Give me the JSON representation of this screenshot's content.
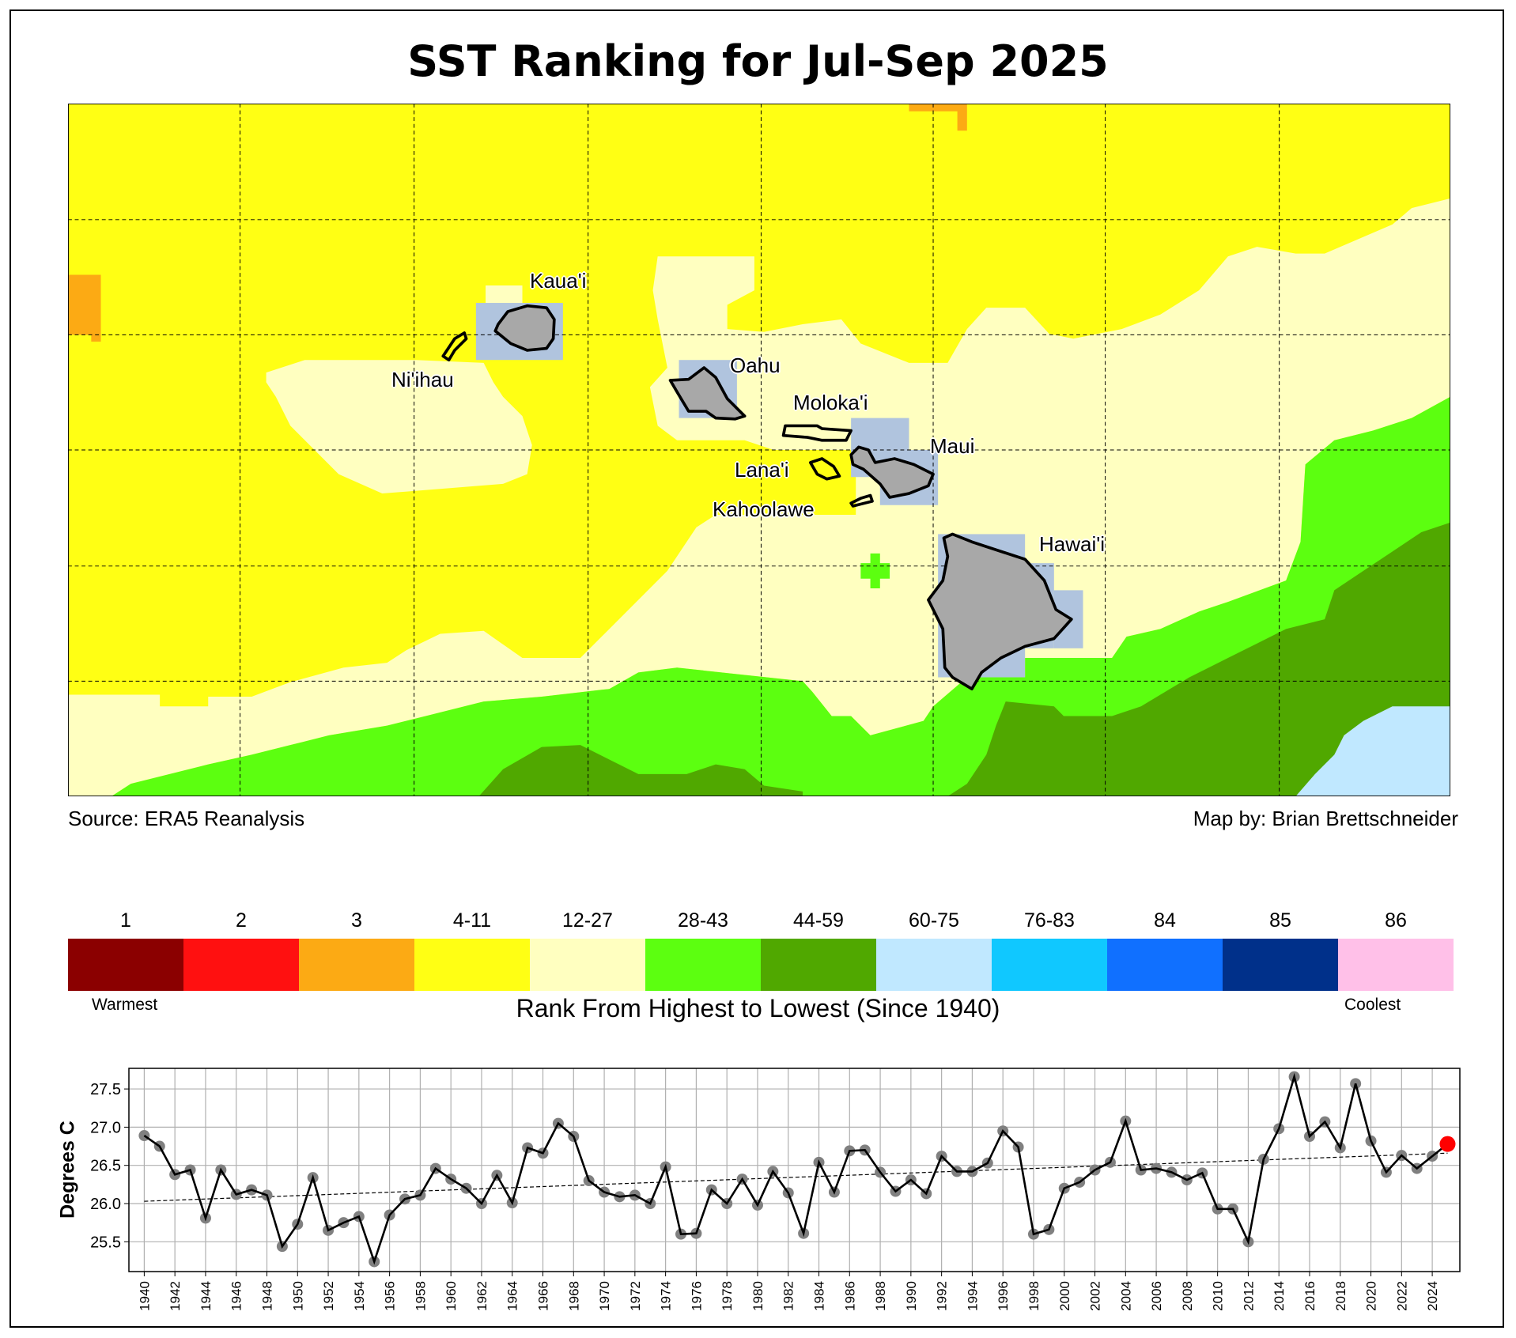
{
  "title": "SST Ranking for Jul-Sep 2025",
  "source": "Source: ERA5 Reanalysis",
  "credit": "Map by: Brian Brettschneider",
  "islands": {
    "kauai": "Kaua'i",
    "niihau": "Ni'ihau",
    "oahu": "Oahu",
    "molokai": "Moloka'i",
    "maui": "Maui",
    "lanai": "Lana'i",
    "kahoolawe": "Kahoolawe",
    "hawaii": "Hawai'i"
  },
  "legend": {
    "labels": [
      "1",
      "2",
      "3",
      "4-11",
      "12-27",
      "28-43",
      "44-59",
      "60-75",
      "76-83",
      "84",
      "85",
      "86"
    ],
    "colors": [
      "#8b0000",
      "#ff1010",
      "#fcaa14",
      "#ffff14",
      "#ffffc0",
      "#5cff10",
      "#50a800",
      "#c0e8ff",
      "#10c8ff",
      "#1070ff",
      "#00308a",
      "#ffc0e8"
    ],
    "warmest": "Warmest",
    "coolest": "Coolest",
    "axis_title": "Rank From Highest to Lowest (Since 1940)"
  },
  "chart_data": {
    "type": "line",
    "title": "",
    "xlabel": "",
    "ylabel": "Degrees C",
    "xlim": [
      1939.0,
      2025.8
    ],
    "ylim": [
      25.11,
      27.77
    ],
    "grid": true,
    "yticks": [
      "25.5",
      "26.0",
      "26.5",
      "27.0",
      "27.5"
    ],
    "x": [
      1940,
      1941,
      1942,
      1943,
      1944,
      1945,
      1946,
      1947,
      1948,
      1949,
      1950,
      1951,
      1952,
      1953,
      1954,
      1955,
      1956,
      1957,
      1958,
      1959,
      1960,
      1961,
      1962,
      1963,
      1964,
      1965,
      1966,
      1967,
      1968,
      1969,
      1970,
      1971,
      1972,
      1973,
      1974,
      1975,
      1976,
      1977,
      1978,
      1979,
      1980,
      1981,
      1982,
      1983,
      1984,
      1985,
      1986,
      1987,
      1988,
      1989,
      1990,
      1991,
      1992,
      1993,
      1994,
      1995,
      1996,
      1997,
      1998,
      1999,
      2000,
      2001,
      2002,
      2003,
      2004,
      2005,
      2006,
      2007,
      2008,
      2009,
      2010,
      2011,
      2012,
      2013,
      2014,
      2015,
      2016,
      2017,
      2018,
      2019,
      2020,
      2021,
      2022,
      2023,
      2024,
      2025
    ],
    "values": [
      26.89,
      26.75,
      26.38,
      26.44,
      25.81,
      26.44,
      26.12,
      26.18,
      26.11,
      25.44,
      25.73,
      26.34,
      25.65,
      25.75,
      25.83,
      25.24,
      25.85,
      26.06,
      26.11,
      26.46,
      26.32,
      26.2,
      26.0,
      26.37,
      26.01,
      26.73,
      26.66,
      27.05,
      26.88,
      26.3,
      26.15,
      26.09,
      26.11,
      26.0,
      26.48,
      25.6,
      25.61,
      26.18,
      26.0,
      26.32,
      25.98,
      26.42,
      26.14,
      25.61,
      26.54,
      26.15,
      26.69,
      26.7,
      26.41,
      26.16,
      26.31,
      26.13,
      26.62,
      26.42,
      26.42,
      26.53,
      26.95,
      26.74,
      25.6,
      25.66,
      26.2,
      26.28,
      26.44,
      26.54,
      27.08,
      26.44,
      26.46,
      26.41,
      26.31,
      26.4,
      25.93,
      25.93,
      25.5,
      26.58,
      26.98,
      27.66,
      26.88,
      27.07,
      26.73,
      27.57,
      26.82,
      26.41,
      26.63,
      26.46,
      26.62,
      26.78
    ],
    "highlight": {
      "x": 2025,
      "value": 26.78,
      "color": "#ff0000"
    },
    "trend": {
      "x": [
        1940,
        2025
      ],
      "values": [
        26.03,
        26.66
      ]
    },
    "point_color": "#808080",
    "line_color": "#000000"
  }
}
